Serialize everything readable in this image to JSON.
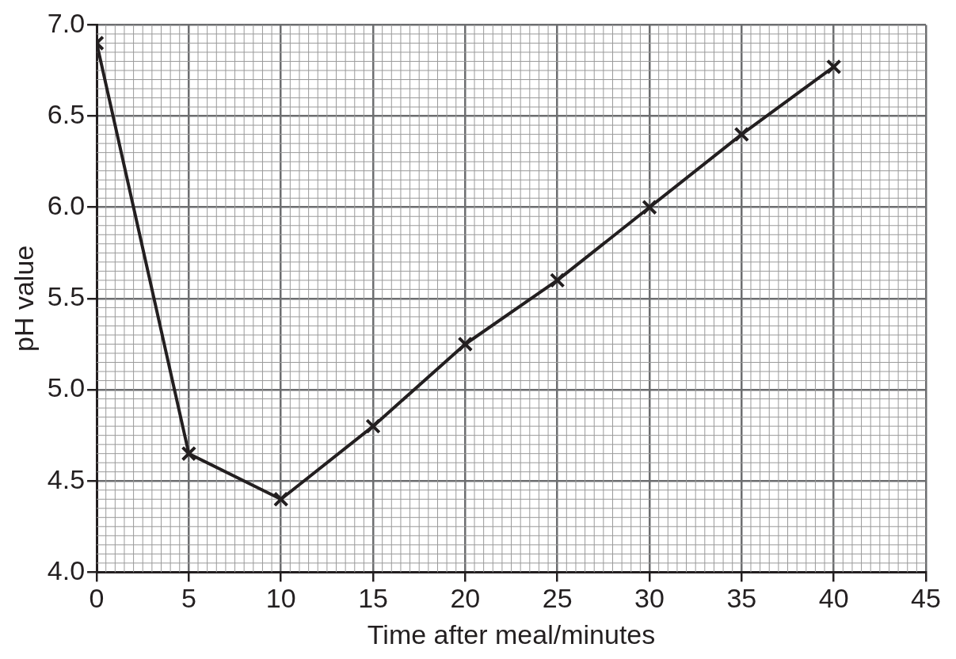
{
  "chart_data": {
    "type": "line",
    "xlabel": "Time after meal/minutes",
    "ylabel": "pH value",
    "x": [
      0,
      5,
      10,
      15,
      20,
      25,
      30,
      35,
      40
    ],
    "series": [
      {
        "color": "#231f20",
        "values": [
          6.9,
          4.65,
          4.4,
          4.8,
          5.25,
          5.6,
          6.0,
          6.4,
          6.77
        ]
      }
    ],
    "xlim": [
      0,
      45
    ],
    "xticks": [
      0,
      5,
      10,
      15,
      20,
      25,
      30,
      35,
      40,
      45
    ],
    "ylim": [
      4.0,
      7.0
    ],
    "yticks": [
      {
        "value": 4.0,
        "label": "4.0"
      },
      {
        "value": 4.5,
        "label": "4.5"
      },
      {
        "value": 5.0,
        "label": "5.0"
      },
      {
        "value": 5.5,
        "label": "5.5"
      },
      {
        "value": 6.0,
        "label": "6.0"
      },
      {
        "value": 6.5,
        "label": "6.5"
      },
      {
        "value": 7.0,
        "label": "7.0"
      }
    ],
    "grid": true,
    "marker": "cross",
    "line_style": "solid",
    "legend": false
  }
}
